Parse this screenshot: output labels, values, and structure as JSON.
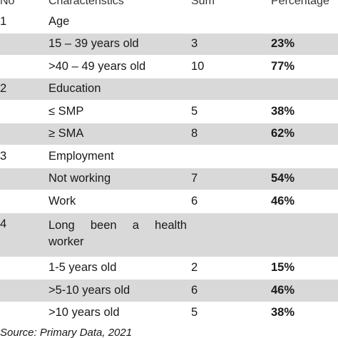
{
  "header": {
    "no": "No",
    "characteristics": "Characteristics",
    "sum": "Sum",
    "percentage": "Percentage"
  },
  "rows": [
    {
      "no": "1",
      "char": "Age",
      "sum": "",
      "pct": ""
    },
    {
      "no": "",
      "char": "15 – 39 years old",
      "sum": "3",
      "pct": "23%"
    },
    {
      "no": "",
      "char": ">40 – 49 years old",
      "sum": "10",
      "pct": "77%"
    },
    {
      "no": "2",
      "char": "Education",
      "sum": "",
      "pct": ""
    },
    {
      "no": "",
      "char": "≤ SMP",
      "sum": "5",
      "pct": "38%"
    },
    {
      "no": "",
      "char": "≥ SMA",
      "sum": "8",
      "pct": "62%"
    },
    {
      "no": "3",
      "char": "Employment",
      "sum": "",
      "pct": ""
    },
    {
      "no": "",
      "char": "Not working",
      "sum": "7",
      "pct": "54%"
    },
    {
      "no": "",
      "char": "Work",
      "sum": "6",
      "pct": "46%"
    },
    {
      "no": "4",
      "char": "Long been a health worker",
      "sum": "",
      "pct": ""
    },
    {
      "no": "",
      "char": "1-5 years old",
      "sum": "2",
      "pct": "15%"
    },
    {
      "no": "",
      "char": ">5-10 years old",
      "sum": "6",
      "pct": "46%"
    },
    {
      "no": "",
      "char": ">10 years old",
      "sum": "5",
      "pct": "38%"
    }
  ],
  "source": "Source: Primary Data, 2021"
}
